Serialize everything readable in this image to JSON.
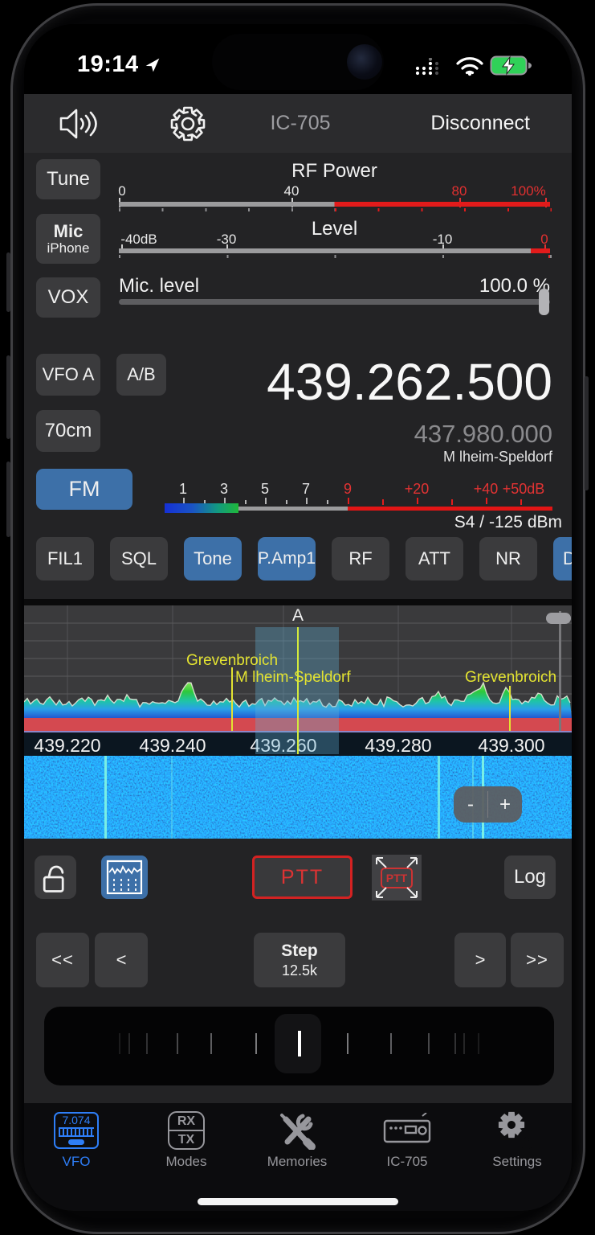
{
  "statusbar": {
    "time": "19:14"
  },
  "header": {
    "title": "IC-705",
    "disconnect": "Disconnect"
  },
  "side": {
    "tune": "Tune",
    "mic_top": "Mic",
    "mic_sub": "iPhone",
    "vox": "VOX"
  },
  "rf_power": {
    "title": "RF Power",
    "t0": "0",
    "t40": "40",
    "t80": "80",
    "t100": "100%"
  },
  "level": {
    "title": "Level",
    "tm40": "-40dB",
    "tm30": "-30",
    "tm10": "-10",
    "t0": "0"
  },
  "mic_level": {
    "label": "Mic. level",
    "value": "100.0 %"
  },
  "vfo": {
    "vfo": "VFO A",
    "ab": "A/B",
    "band": "70cm",
    "freq": "439.262.500",
    "freq_sub": "437.980.000",
    "station": "M lheim-Speldorf",
    "mode": "FM"
  },
  "smeter": {
    "s1": "1",
    "s3": "3",
    "s5": "5",
    "s7": "7",
    "s9": "9",
    "p20": "+20",
    "p40": "+40",
    "p50": "+50dB",
    "reading": "S4 / -125 dBm"
  },
  "toggles": [
    "FIL1",
    "SQL",
    "Tone",
    "P.Amp1",
    "RF",
    "ATT",
    "NR",
    "D"
  ],
  "spectrum": {
    "marker": "A",
    "label_left": "Grevenbroich",
    "label_center": "M lheim-Speldorf",
    "label_right": "Grevenbroich",
    "freqs": [
      "439.220",
      "439.240",
      "439.260",
      "439.280",
      "439.300"
    ]
  },
  "waterfall": {
    "minus": "-",
    "plus": "+"
  },
  "controls": {
    "ptt": "PTT",
    "ptt_mini": "PTT",
    "log": "Log"
  },
  "step": {
    "fast_down": "<<",
    "down": "<",
    "label": "Step",
    "value": "12.5k",
    "up": ">",
    "fast_up": ">>"
  },
  "tabbar": [
    {
      "label": "VFO",
      "icon_text": "7.074"
    },
    {
      "label": "Modes",
      "rx": "RX",
      "tx": "TX"
    },
    {
      "label": "Memories"
    },
    {
      "label": "IC-705"
    },
    {
      "label": "Settings"
    }
  ],
  "colors": {
    "accent_blue": "#3d70a8",
    "tab_blue": "#2e7ef7",
    "meter_red": "#e21b1b",
    "marker_yellow": "#e3e331",
    "battery_green": "#30d158"
  }
}
